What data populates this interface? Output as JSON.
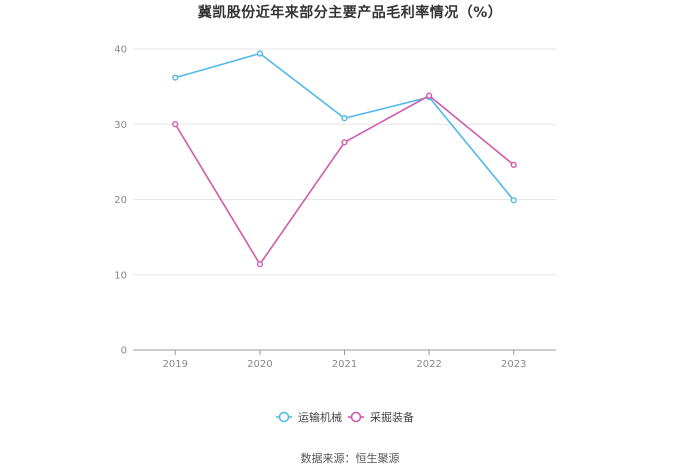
{
  "chart_data": {
    "type": "line",
    "title": "冀凯股份近年来部分主要产品毛利率情况（%）",
    "categories": [
      "2019",
      "2020",
      "2021",
      "2022",
      "2023"
    ],
    "series": [
      {
        "name": "运输机械",
        "color": "#4fb9ea",
        "values": [
          36.2,
          39.4,
          30.8,
          33.6,
          19.9
        ]
      },
      {
        "name": "采掘装备",
        "color": "#d05bae",
        "values": [
          30.0,
          11.4,
          27.6,
          33.8,
          24.6
        ]
      }
    ],
    "ylim": [
      0,
      40
    ],
    "yticks": [
      0,
      10,
      20,
      30,
      40
    ],
    "xlabel": "",
    "ylabel": "",
    "grid": true,
    "legend_position": "bottom-center"
  },
  "source": "数据来源：恒生聚源"
}
